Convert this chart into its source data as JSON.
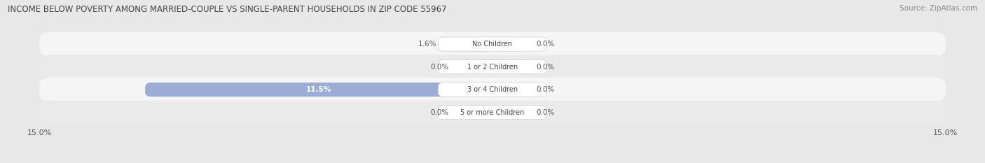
{
  "title": "INCOME BELOW POVERTY AMONG MARRIED-COUPLE VS SINGLE-PARENT HOUSEHOLDS IN ZIP CODE 55967",
  "source": "Source: ZipAtlas.com",
  "categories": [
    "No Children",
    "1 or 2 Children",
    "3 or 4 Children",
    "5 or more Children"
  ],
  "married_values": [
    1.6,
    0.0,
    11.5,
    0.0
  ],
  "single_values": [
    0.0,
    0.0,
    0.0,
    0.0
  ],
  "xlim": 15.0,
  "married_color": "#9badd4",
  "single_color": "#f0c080",
  "row_colors": [
    "#f5f5f5",
    "#eaeaea"
  ],
  "bg_color": "#e8e8e8",
  "title_fontsize": 8.5,
  "source_fontsize": 7.5,
  "label_fontsize": 7.5,
  "category_fontsize": 7.0,
  "axis_label_fontsize": 8,
  "legend_fontsize": 8,
  "bar_height": 0.62,
  "min_bar_width": 1.2
}
